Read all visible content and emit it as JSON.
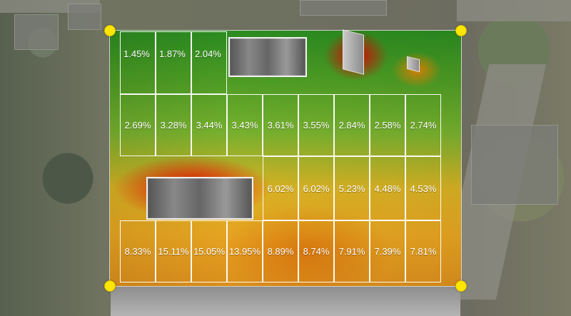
{
  "panels": [
    {
      "id": "p1",
      "label": "1.45%"
    },
    {
      "id": "p2",
      "label": "1.87%"
    },
    {
      "id": "p3",
      "label": "2.04%"
    },
    {
      "id": "p4",
      "label": "2.69%"
    },
    {
      "id": "p5",
      "label": "3.28%"
    },
    {
      "id": "p6",
      "label": "3.44%"
    },
    {
      "id": "p7",
      "label": "3.43%"
    },
    {
      "id": "p8",
      "label": "3.61%"
    },
    {
      "id": "p9",
      "label": "3.55%"
    },
    {
      "id": "p10",
      "label": "2.84%"
    },
    {
      "id": "p11",
      "label": "2.58%"
    },
    {
      "id": "p12",
      "label": "2.74%"
    },
    {
      "id": "p13",
      "label": "6.02%"
    },
    {
      "id": "p14",
      "label": "6.02%"
    },
    {
      "id": "p15",
      "label": "5.23%"
    },
    {
      "id": "p16",
      "label": "4.48%"
    },
    {
      "id": "p17",
      "label": "4.53%"
    },
    {
      "id": "p18",
      "label": "8.33%"
    },
    {
      "id": "p19",
      "label": "15.11%"
    },
    {
      "id": "p20",
      "label": "15.05%"
    },
    {
      "id": "p21",
      "label": "13.95%"
    },
    {
      "id": "p22",
      "label": "8.89%"
    },
    {
      "id": "p23",
      "label": "8.74%"
    },
    {
      "id": "p24",
      "label": "7.91%"
    },
    {
      "id": "p25",
      "label": "7.39%"
    },
    {
      "id": "p26",
      "label": "7.81%"
    }
  ],
  "colors": {
    "corner_handle": "#ffe600",
    "grid_line": "#ffffff",
    "heat_low": "#2b8b20",
    "heat_mid": "#d8b123",
    "heat_high": "#e60000"
  }
}
